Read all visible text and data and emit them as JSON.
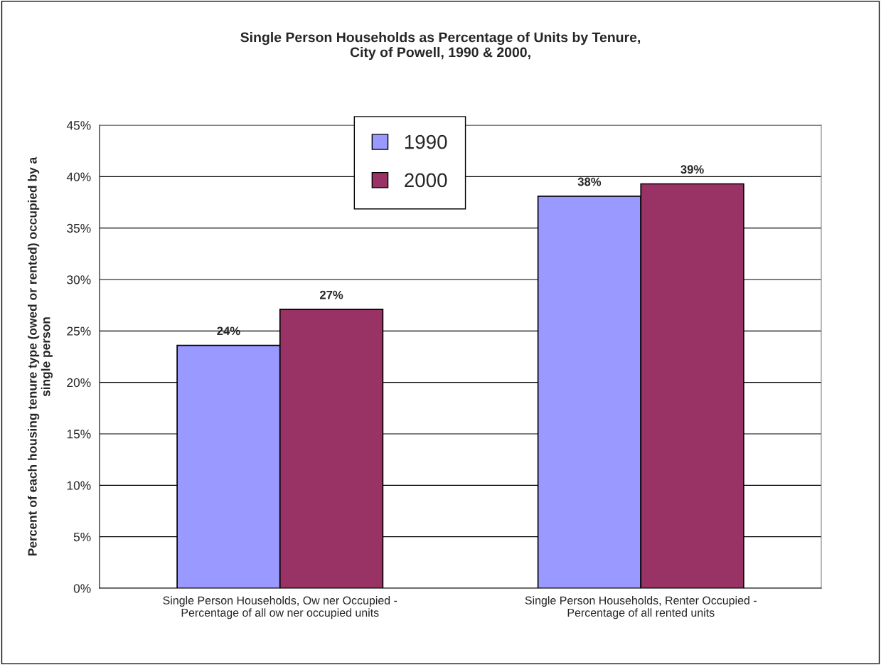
{
  "chart_data": {
    "type": "bar",
    "title": "Single Person Households as Percentage of Units by Tenure,\nCity of Powell, 1990 & 2000,",
    "ylabel": "Percent of each housing tenure type (owed or rented) occupied by a\nsingle person",
    "categories": [
      "Single Person Households, Ow ner Occupied -\nPercentage of all ow ner occupied units",
      "Single Person Households, Renter Occupied -\nPercentage of all rented units"
    ],
    "series": [
      {
        "name": "1990",
        "color": "#9999ff",
        "values": [
          23.6,
          38.1
        ],
        "value_labels": [
          "24%",
          "38%"
        ]
      },
      {
        "name": "2000",
        "color": "#993366",
        "values": [
          27.1,
          39.3
        ],
        "value_labels": [
          "27%",
          "39%"
        ]
      }
    ],
    "ylim": [
      0,
      45
    ],
    "yticks": [
      {
        "value": 0,
        "label": "0%"
      },
      {
        "value": 5,
        "label": "5%"
      },
      {
        "value": 10,
        "label": "10%"
      },
      {
        "value": 15,
        "label": "15%"
      },
      {
        "value": 20,
        "label": "20%"
      },
      {
        "value": 25,
        "label": "25%"
      },
      {
        "value": 30,
        "label": "30%"
      },
      {
        "value": 35,
        "label": "35%"
      },
      {
        "value": 40,
        "label": "40%"
      },
      {
        "value": 45,
        "label": "45%"
      }
    ],
    "grid": "y",
    "legend": "top"
  }
}
